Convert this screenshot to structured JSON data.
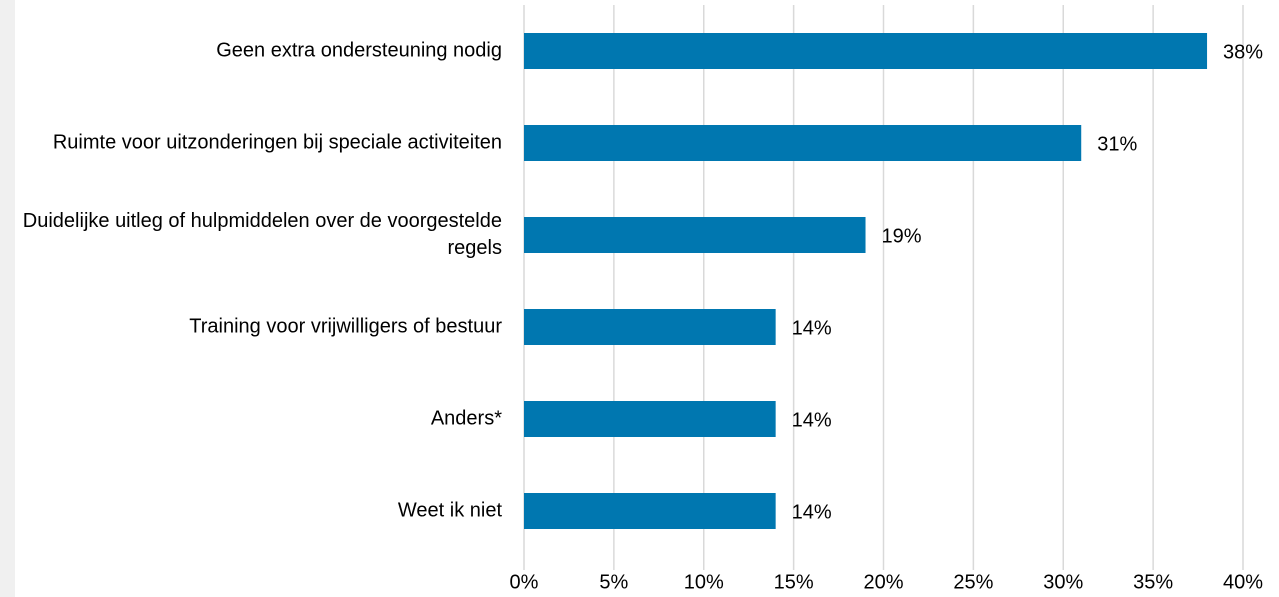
{
  "chart_data": {
    "type": "barh",
    "categories": [
      "Geen extra ondersteuning nodig",
      "Ruimte voor uitzonderingen bij speciale activiteiten",
      "Duidelijke uitleg of hulpmiddelen over de voorgestelde regels",
      "Training voor vrijwilligers of bestuur",
      "Anders*",
      "Weet ik niet"
    ],
    "values": [
      38,
      31,
      19,
      14,
      14,
      14
    ],
    "value_labels": [
      "38%",
      "31%",
      "19%",
      "14%",
      "14%",
      "14%"
    ],
    "color": "#0077b0",
    "xlim": [
      0,
      40
    ],
    "xticks": [
      {
        "value": 0,
        "label": "0%"
      },
      {
        "value": 5,
        "label": "5%"
      },
      {
        "value": 10,
        "label": "10%"
      },
      {
        "value": 15,
        "label": "15%"
      },
      {
        "value": 20,
        "label": "20%"
      },
      {
        "value": 25,
        "label": "25%"
      },
      {
        "value": 30,
        "label": "30%"
      },
      {
        "value": 35,
        "label": "35%"
      },
      {
        "value": 40,
        "label": "40%"
      }
    ],
    "grid": true
  }
}
